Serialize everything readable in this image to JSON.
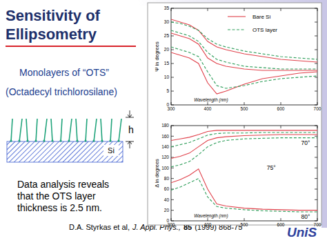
{
  "slide": {
    "title": [
      "Sensitivity of",
      "Ellipsometry"
    ],
    "subtitle": "Monolayers of “OTS”",
    "subtitle_detail": "(Octadecyl trichlorosilane)",
    "diagram": {
      "height_label": "h",
      "substrate_label": "Si"
    },
    "conclusion": [
      "Data analysis reveals",
      "that the OTS layer",
      "thickness is 2.5 nm."
    ],
    "citation": {
      "authors": "D.A. Styrkas et al,",
      "journal": "J. Appl. Phys.,",
      "volume": "85",
      "rest": "(1999) 868-75"
    },
    "logo": "UniS"
  },
  "chart_data": [
    {
      "type": "line",
      "xlabel": "Wavelength (nm)",
      "ylabel": "Ψ in degrees",
      "x": [
        300,
        325,
        350,
        375,
        400,
        425,
        450,
        500,
        550,
        600,
        650,
        700
      ],
      "xlim": [
        300,
        700
      ],
      "ylim": [
        0,
        35
      ],
      "xticks": [
        300,
        400,
        500,
        600,
        700
      ],
      "yticks": [
        0,
        5,
        10,
        15,
        20,
        25,
        30,
        35
      ],
      "legend": "upper right",
      "series": [
        {
          "name": "Bare Si",
          "color": "#e0404a",
          "line_style": "solid",
          "values": [
            31,
            30,
            29,
            27,
            23,
            21,
            20,
            18.5,
            17.5,
            16.5,
            16,
            15.5
          ]
        },
        {
          "name": "OTS layer",
          "color": "#2e9e5a",
          "line_style": "dashed",
          "values": [
            30,
            29.5,
            28.5,
            27,
            24,
            22,
            21,
            19.5,
            18.5,
            17.5,
            17,
            16.5
          ]
        },
        {
          "name": "Bare Si",
          "color": "#e0404a",
          "line_style": "solid",
          "values": [
            26,
            25,
            24,
            22,
            17,
            15,
            14,
            13,
            12.5,
            12.5,
            12.5,
            12.5
          ]
        },
        {
          "name": "OTS layer",
          "color": "#2e9e5a",
          "line_style": "dashed",
          "values": [
            27,
            26,
            25,
            23,
            19,
            16.5,
            15.5,
            14,
            13.5,
            13,
            13,
            13
          ]
        },
        {
          "name": "Bare Si",
          "color": "#e0404a",
          "line_style": "solid",
          "values": [
            19,
            18,
            17,
            15,
            8,
            4,
            5,
            7.5,
            9.5,
            10.5,
            11.5,
            12
          ]
        },
        {
          "name": "OTS layer",
          "color": "#2e9e5a",
          "line_style": "dashed",
          "values": [
            21,
            20,
            19,
            17.5,
            12,
            7,
            6,
            7,
            8.5,
            9.5,
            10,
            10.5
          ]
        }
      ]
    },
    {
      "type": "line",
      "xlabel": "Wavelength (nm)",
      "ylabel": "Δ in degrees",
      "x": [
        300,
        325,
        350,
        375,
        400,
        425,
        450,
        500,
        550,
        600,
        650,
        700
      ],
      "xlim": [
        300,
        700
      ],
      "ylim": [
        0,
        180
      ],
      "xticks": [
        300,
        400,
        500,
        600,
        700
      ],
      "yticks": [
        0,
        20,
        40,
        60,
        80,
        100,
        120,
        140,
        160,
        180
      ],
      "annotations": [
        {
          "text": "70°",
          "x": 668,
          "y": 147
        },
        {
          "text": "75°",
          "x": 574,
          "y": 100
        },
        {
          "text": "80°",
          "x": 668,
          "y": 8
        }
      ],
      "series": [
        {
          "name": "Bare Si",
          "color": "#e0404a",
          "line_style": "solid",
          "values": [
            152,
            155,
            158,
            163,
            169,
            171,
            171,
            171,
            171,
            171,
            171,
            171
          ]
        },
        {
          "name": "OTS layer",
          "color": "#2e9e5a",
          "line_style": "dashed",
          "values": [
            140,
            144,
            148,
            155,
            162,
            165,
            166,
            166,
            167,
            167,
            167,
            167
          ]
        },
        {
          "name": "Bare Si",
          "color": "#e0404a",
          "line_style": "solid",
          "values": [
            118,
            122,
            128,
            140,
            152,
            157,
            159,
            161,
            162,
            163,
            163,
            163
          ]
        },
        {
          "name": "OTS layer",
          "color": "#2e9e5a",
          "line_style": "dashed",
          "values": [
            102,
            106,
            112,
            125,
            140,
            148,
            152,
            155,
            156,
            157,
            157,
            157
          ]
        },
        {
          "name": "Bare Si",
          "color": "#e0404a",
          "line_style": "solid",
          "values": [
            72,
            78,
            86,
            98,
            60,
            32,
            28,
            24,
            22,
            21,
            20,
            20
          ]
        },
        {
          "name": "OTS layer",
          "color": "#2e9e5a",
          "line_style": "dashed",
          "values": [
            58,
            64,
            72,
            80,
            45,
            27,
            24,
            21,
            19,
            18,
            17,
            17
          ]
        }
      ]
    }
  ]
}
